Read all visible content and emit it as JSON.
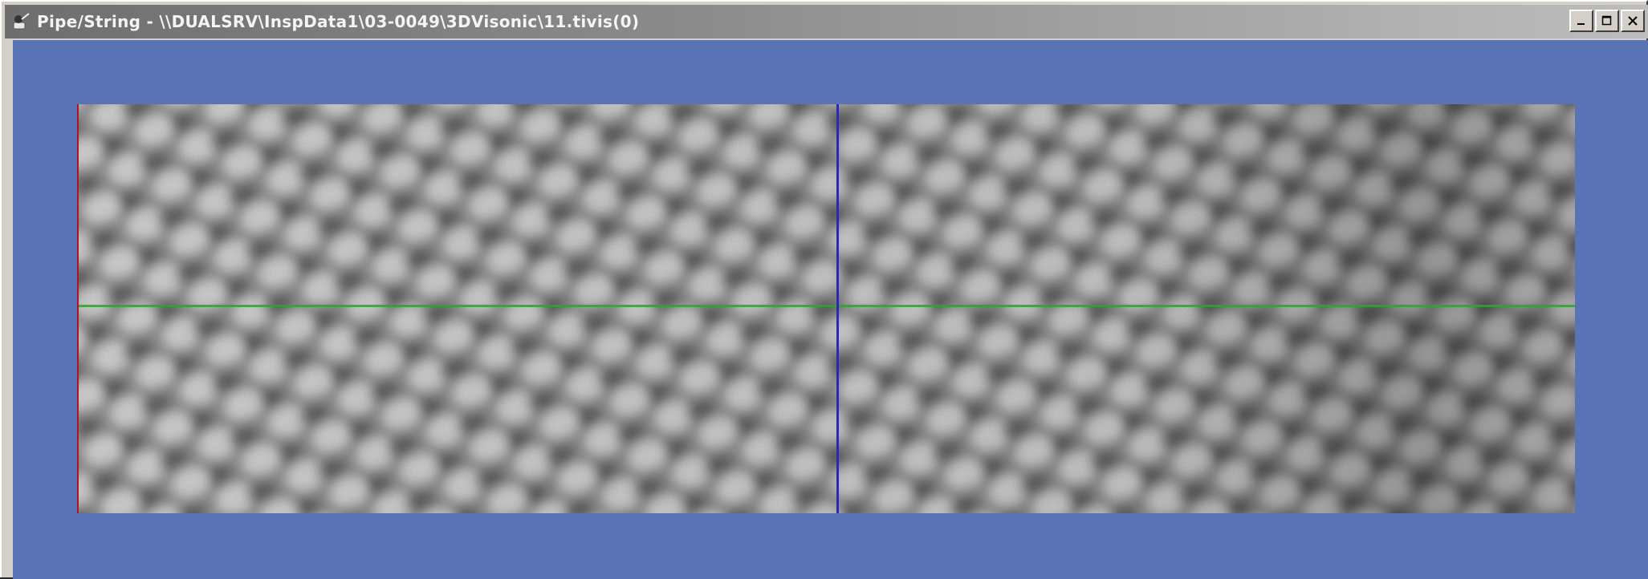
{
  "window": {
    "title": "Pipe/String - \\\\DUALSRV\\InspData1\\03-0049\\3DVisonic\\11.tivis(0)",
    "app_icon": "app-icon",
    "buttons": [
      {
        "name": "minimize",
        "icon": "minimize-icon"
      },
      {
        "name": "maximize",
        "icon": "maximize-icon"
      },
      {
        "name": "close",
        "icon": "close-icon"
      }
    ]
  },
  "colors": {
    "client_background": "#5a73b5",
    "horizontal_cursor": "#3c9a3c",
    "vertical_cursor": "#2c2c9a",
    "left_edge_marker": "#b01030"
  },
  "scan_view": {
    "content": "grayscale scan image of pipe surface",
    "cursors": [
      "horizontal-cursor",
      "vertical-cursor"
    ]
  }
}
